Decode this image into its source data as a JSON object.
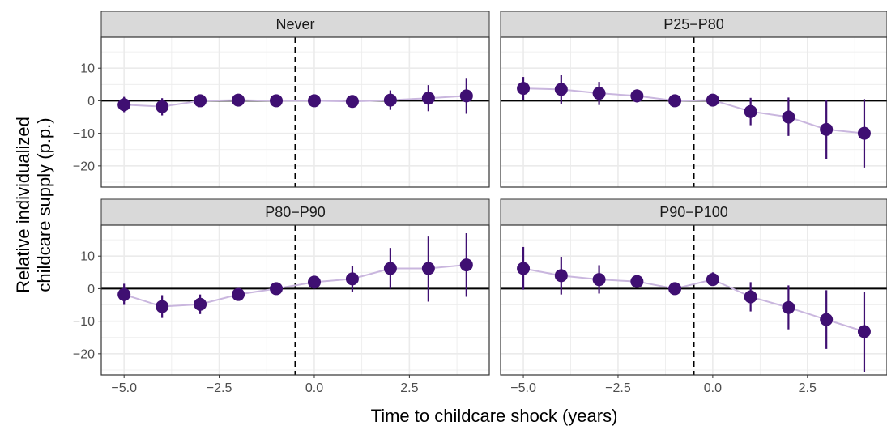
{
  "chart_data": {
    "type": "scatter",
    "layout": "facet-grid-2x2",
    "xlabel": "Time to childcare shock (years)",
    "ylabel_lines": [
      "Relative individualized",
      "childcare supply (p.p.)"
    ],
    "xlim": [
      -5.6,
      4.6
    ],
    "ylim": [
      -26.5,
      19.5
    ],
    "x_ticks": [
      -5.0,
      -2.5,
      0.0,
      2.5
    ],
    "x_tick_labels": [
      "−5.0",
      "−2.5",
      "0.0",
      "2.5"
    ],
    "y_ticks": [
      10,
      0,
      -10,
      -20
    ],
    "y_tick_labels": [
      "10",
      "0",
      "−10",
      "−20"
    ],
    "vline_x": -0.5,
    "hline_y": 0,
    "grid": true,
    "colors": {
      "point": "#3f0f72",
      "line": "#c9b6de",
      "strip_bg": "#d9d9d9",
      "grid": "#ebebeb",
      "border": "#333333"
    },
    "panels": [
      {
        "title": "Never",
        "x": [
          -5,
          -4,
          -3,
          -2,
          -1,
          0,
          1,
          2,
          3,
          4
        ],
        "y": [
          -1.2,
          -1.8,
          0,
          0.2,
          0,
          0,
          -0.2,
          0.2,
          0.8,
          1.5
        ],
        "lower": [
          -3.5,
          -4.5,
          -1,
          -0.8,
          -0.8,
          -0.8,
          -1.2,
          -2.8,
          -3.2,
          -4
        ],
        "upper": [
          1.2,
          0.8,
          1,
          1.2,
          0.8,
          0.8,
          0.8,
          3.2,
          4.8,
          7
        ]
      },
      {
        "title": "P25−P80",
        "x": [
          -5,
          -4,
          -3,
          -2,
          -1,
          0,
          1,
          2,
          3,
          4
        ],
        "y": [
          3.8,
          3.5,
          2.3,
          1.5,
          0,
          0.2,
          -3.3,
          -5,
          -8.8,
          -10
        ],
        "lower": [
          0.3,
          -1,
          -1.3,
          -0.5,
          -0.8,
          -0.6,
          -7.5,
          -10.8,
          -17.8,
          -20.5
        ],
        "upper": [
          7.3,
          8,
          5.8,
          3.5,
          0.8,
          1,
          0.9,
          1,
          0.3,
          0.5
        ]
      },
      {
        "title": "P80−P90",
        "x": [
          -5,
          -4,
          -3,
          -2,
          -1,
          0,
          1,
          2,
          3,
          4
        ],
        "y": [
          -1.8,
          -5.5,
          -4.8,
          -1.8,
          0,
          2,
          3,
          6.2,
          6.2,
          7.3
        ],
        "lower": [
          -5,
          -9,
          -7.8,
          -3.2,
          -0.8,
          0.5,
          -1,
          0,
          -4,
          -2.5
        ],
        "upper": [
          1.5,
          -2,
          -1.8,
          -0.5,
          0.8,
          3.5,
          7,
          12.5,
          16,
          17
        ]
      },
      {
        "title": "P90−P100",
        "x": [
          -5,
          -4,
          -3,
          -2,
          -1,
          0,
          1,
          2,
          3,
          4
        ],
        "y": [
          6.2,
          4,
          2.8,
          2.2,
          0,
          2.8,
          -2.5,
          -5.8,
          -9.5,
          -13.2
        ],
        "lower": [
          -0.3,
          -1.8,
          -1.5,
          0.3,
          -0.8,
          1,
          -7,
          -12.5,
          -18.5,
          -25.5
        ],
        "upper": [
          12.8,
          9.8,
          7.2,
          4.2,
          0.8,
          5,
          2,
          1,
          -0.5,
          -1
        ]
      }
    ]
  }
}
